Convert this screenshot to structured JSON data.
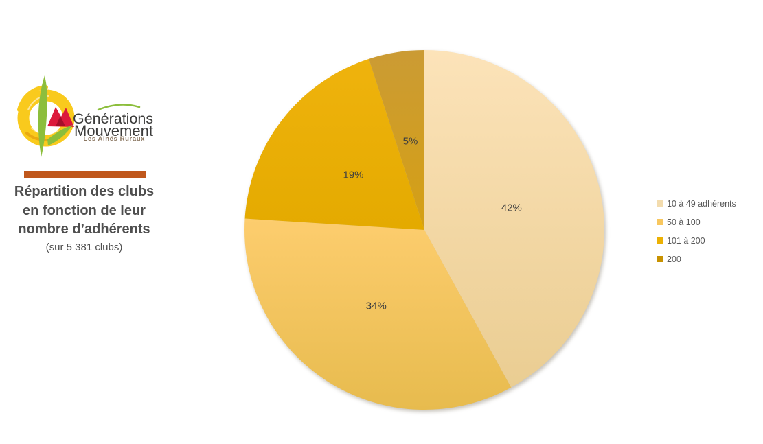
{
  "logo": {
    "brand_line1": "Générations",
    "brand_line2": "Mouvement",
    "tagline": "Les Aînés Ruraux",
    "colors": {
      "sun": "#F9CA1D",
      "sun_dark": "#E9A912",
      "leaf": "#8CBE3C",
      "roof": "#DC1A3C",
      "roof_dark": "#A50F2A",
      "text": "#3C3C3B",
      "tagline": "#8A7660"
    }
  },
  "divider_color": "#C0571B",
  "title": {
    "lines": [
      "Répartition des clubs",
      "en fonction de leur",
      "nombre d’adhérents"
    ],
    "subtitle": "(sur 5 381 clubs)"
  },
  "chart_data": {
    "type": "pie",
    "title": "Répartition des clubs en fonction de leur nombre d’adhérents",
    "subtitle": "(sur 5 381 clubs)",
    "start_angle_deg": 0,
    "direction": "clockwise",
    "legend_position": "right",
    "label_format": "percent",
    "label_text_color": "#3F3F3F",
    "legend_text_color": "#595959",
    "segments": [
      {
        "label": "10 à 49 adhérents",
        "value_pct": 42,
        "data_label": "42%",
        "color_top": "#FCE3B9",
        "color_bottom": "#EACD92",
        "legend_color": "#F3DCAE"
      },
      {
        "label": "50 à 100",
        "value_pct": 34,
        "data_label": "34%",
        "color_top": "#FDCD6E",
        "color_bottom": "#E7BB4E",
        "legend_color": "#F8C75F"
      },
      {
        "label": "101 à 200",
        "value_pct": 19,
        "data_label": "19%",
        "color_top": "#EFB30D",
        "color_bottom": "#E4AA00",
        "legend_color": "#ECB104"
      },
      {
        "label": "200",
        "value_pct": 5,
        "data_label": "5%",
        "color_top": "#CB9B34",
        "color_bottom": "#D5A014",
        "legend_color": "#C89200"
      }
    ]
  }
}
